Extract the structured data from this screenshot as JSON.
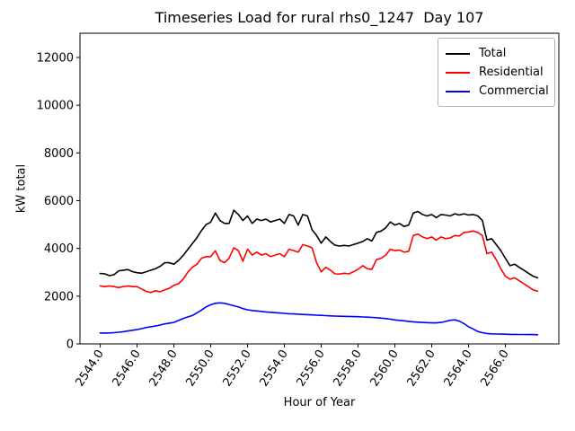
{
  "figure": {
    "title": "Timeseries Load for rural rhs0_1247  Day 107",
    "xlabel": "Hour of Year",
    "ylabel": "kW total"
  },
  "chart_data": {
    "type": "line",
    "title": "Timeseries Load for rural rhs0_1247  Day 107",
    "xlabel": "Hour of Year",
    "ylabel": "kW total",
    "grid": false,
    "legend_position": "upper right",
    "xlim": [
      2542.9,
      2568.9
    ],
    "ylim": [
      0,
      13016
    ],
    "xticks": [
      2544,
      2546,
      2548,
      2550,
      2552,
      2554,
      2556,
      2558,
      2560,
      2562,
      2564,
      2566
    ],
    "xtick_labels": [
      "2544.0",
      "2546.0",
      "2548.0",
      "2550.0",
      "2552.0",
      "2554.0",
      "2556.0",
      "2558.0",
      "2560.0",
      "2562.0",
      "2564.0",
      "2566.0"
    ],
    "yticks": [
      0,
      2000,
      4000,
      6000,
      8000,
      10000,
      12000
    ],
    "x_start": 2544.0,
    "x_step": 0.25,
    "n_points": 96,
    "series": [
      {
        "name": "Total",
        "color": "#000000",
        "values": [
          2950,
          2935,
          2860,
          2900,
          3060,
          3090,
          3115,
          3030,
          2985,
          2960,
          3025,
          3090,
          3150,
          3250,
          3400,
          3400,
          3340,
          3500,
          3700,
          3950,
          4200,
          4450,
          4750,
          5000,
          5100,
          5480,
          5170,
          5050,
          5050,
          5600,
          5420,
          5170,
          5360,
          5050,
          5230,
          5170,
          5230,
          5110,
          5170,
          5230,
          5050,
          5420,
          5360,
          4980,
          5420,
          5360,
          4790,
          4540,
          4220,
          4480,
          4290,
          4135,
          4100,
          4125,
          4100,
          4160,
          4220,
          4290,
          4410,
          4310,
          4670,
          4730,
          4860,
          5110,
          4980,
          5045,
          4920,
          4980,
          5480,
          5550,
          5420,
          5360,
          5420,
          5290,
          5420,
          5400,
          5360,
          5450,
          5400,
          5450,
          5400,
          5420,
          5360,
          5170,
          4350,
          4410,
          4160,
          3910,
          3590,
          3275,
          3340,
          3210,
          3090,
          2960,
          2835,
          2770
        ]
      },
      {
        "name": "Residential",
        "color": "#ff0000",
        "values": [
          2430,
          2400,
          2430,
          2400,
          2360,
          2400,
          2430,
          2400,
          2400,
          2300,
          2200,
          2150,
          2230,
          2180,
          2265,
          2330,
          2455,
          2520,
          2710,
          3000,
          3210,
          3340,
          3590,
          3655,
          3655,
          3900,
          3500,
          3400,
          3590,
          4030,
          3910,
          3465,
          3970,
          3720,
          3845,
          3720,
          3780,
          3655,
          3720,
          3780,
          3655,
          3970,
          3910,
          3845,
          4160,
          4100,
          4030,
          3400,
          3020,
          3210,
          3090,
          2935,
          2925,
          2960,
          2935,
          3020,
          3125,
          3275,
          3150,
          3125,
          3530,
          3590,
          3720,
          3970,
          3910,
          3930,
          3845,
          3880,
          4540,
          4600,
          4480,
          4410,
          4480,
          4350,
          4480,
          4410,
          4440,
          4540,
          4520,
          4670,
          4690,
          4730,
          4670,
          4540,
          3780,
          3845,
          3530,
          3150,
          2835,
          2710,
          2770,
          2645,
          2520,
          2395,
          2265,
          2205
        ]
      },
      {
        "name": "Commercial",
        "color": "#0000ff",
        "values": [
          460,
          455,
          460,
          470,
          490,
          510,
          540,
          570,
          600,
          640,
          690,
          720,
          750,
          790,
          840,
          870,
          900,
          980,
          1060,
          1130,
          1190,
          1300,
          1420,
          1550,
          1640,
          1700,
          1720,
          1700,
          1650,
          1600,
          1550,
          1480,
          1430,
          1400,
          1380,
          1360,
          1340,
          1325,
          1310,
          1295,
          1280,
          1265,
          1255,
          1245,
          1235,
          1225,
          1215,
          1205,
          1195,
          1185,
          1175,
          1165,
          1160,
          1155,
          1150,
          1145,
          1140,
          1130,
          1120,
          1110,
          1100,
          1080,
          1060,
          1040,
          1005,
          985,
          965,
          945,
          925,
          910,
          900,
          890,
          880,
          880,
          900,
          940,
          990,
          1010,
          950,
          850,
          720,
          625,
          520,
          470,
          435,
          420,
          415,
          410,
          405,
          400,
          400,
          395,
          395,
          390,
          390,
          385
        ]
      }
    ]
  }
}
